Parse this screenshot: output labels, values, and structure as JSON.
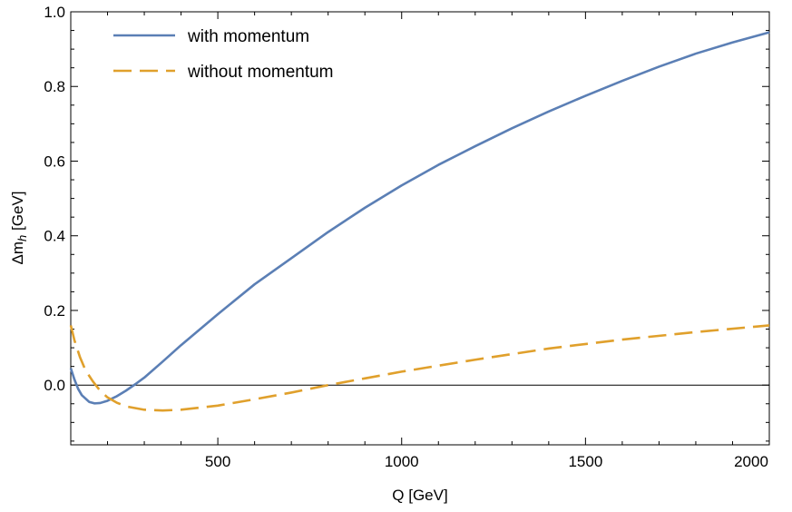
{
  "chart_data": {
    "type": "line",
    "title": "",
    "xlabel": "Q [GeV]",
    "ylabel_main": "Δm",
    "ylabel_sub": "h",
    "ylabel_unit": " [GeV]",
    "xlim": [
      100,
      2000
    ],
    "ylim": [
      -0.16,
      1.0
    ],
    "xticks": [
      500,
      1000,
      1500,
      2000
    ],
    "xtick_labels": [
      "500",
      "1000",
      "1500",
      "2000"
    ],
    "yticks": [
      0.0,
      0.2,
      0.4,
      0.6,
      0.8,
      1.0
    ],
    "ytick_labels": [
      "0.0",
      "0.2",
      "0.4",
      "0.6",
      "0.8",
      "1.0"
    ],
    "grid": false,
    "zero_line": true,
    "legend_position": "top-left",
    "series": [
      {
        "name": "with momentum",
        "color": "#5b7fb5",
        "style": "solid",
        "x": [
          100,
          110,
          120,
          130,
          150,
          165,
          180,
          200,
          225,
          250,
          275,
          300,
          350,
          400,
          500,
          600,
          700,
          800,
          900,
          1000,
          1100,
          1200,
          1300,
          1400,
          1500,
          1600,
          1700,
          1800,
          1900,
          2000
        ],
        "y": [
          0.045,
          0.015,
          -0.01,
          -0.027,
          -0.045,
          -0.049,
          -0.048,
          -0.042,
          -0.03,
          -0.015,
          0.002,
          0.02,
          0.063,
          0.107,
          0.19,
          0.27,
          0.34,
          0.41,
          0.475,
          0.535,
          0.59,
          0.64,
          0.688,
          0.733,
          0.775,
          0.815,
          0.853,
          0.888,
          0.918,
          0.945
        ]
      },
      {
        "name": "without momentum",
        "color": "#e0a02c",
        "style": "dashed",
        "x": [
          100,
          110,
          125,
          140,
          160,
          180,
          200,
          225,
          250,
          300,
          350,
          400,
          500,
          600,
          700,
          800,
          900,
          1000,
          1200,
          1400,
          1600,
          1800,
          2000
        ],
        "y": [
          0.16,
          0.12,
          0.075,
          0.04,
          0.01,
          -0.015,
          -0.033,
          -0.047,
          -0.057,
          -0.066,
          -0.068,
          -0.066,
          -0.055,
          -0.038,
          -0.02,
          0.0,
          0.018,
          0.036,
          0.068,
          0.098,
          0.122,
          0.142,
          0.16
        ]
      }
    ]
  }
}
